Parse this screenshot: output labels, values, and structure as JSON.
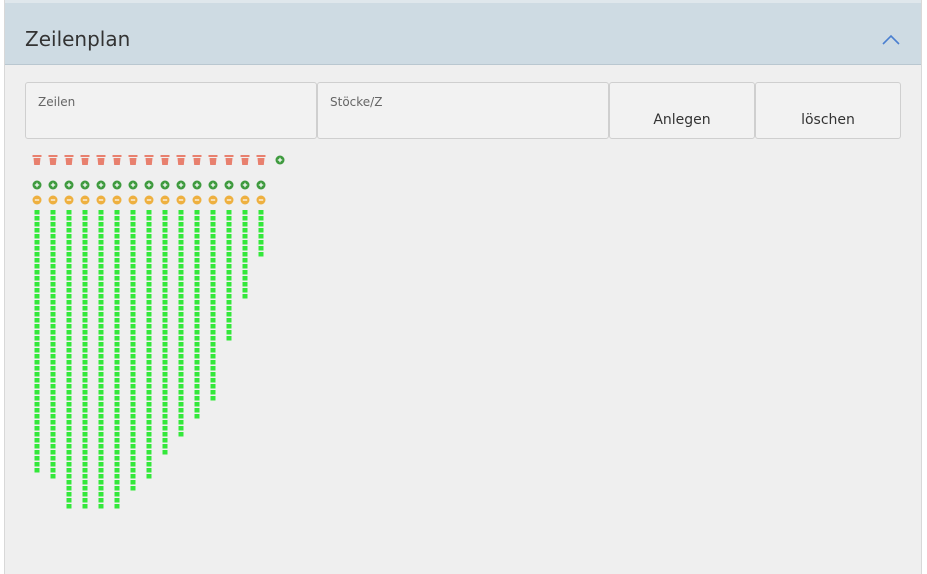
{
  "header": {
    "title": "Zeilenplan"
  },
  "form": {
    "fields": [
      "Zeilen",
      "Stöcke/Z"
    ],
    "buttons": [
      "Anlegen",
      "löschen"
    ]
  },
  "plan": {
    "rows": [
      44,
      45,
      50,
      50,
      50,
      50,
      47,
      45,
      41,
      38,
      35,
      32,
      22,
      15,
      8
    ]
  }
}
